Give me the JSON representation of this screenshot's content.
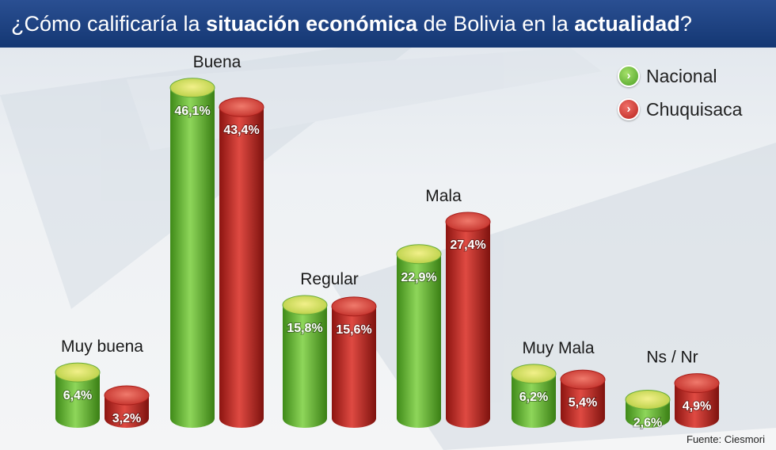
{
  "title": {
    "part1": "¿Cómo calificaría la ",
    "bold1": "situación económica",
    "part2": " de Bolivia en la ",
    "bold2": "actualidad",
    "part3": "?"
  },
  "colors": {
    "nacional": "#5cb82e",
    "chuquisaca": "#c42a26",
    "title_bg": "#1b3f7f"
  },
  "source": "Fuente: Ciesmori",
  "chart_data": {
    "type": "bar",
    "title": "¿Cómo calificaría la situación económica de Bolivia en la actualidad?",
    "categories": [
      "Muy buena",
      "Buena",
      "Regular",
      "Mala",
      "Muy Mala",
      "Ns / Nr"
    ],
    "series": [
      {
        "name": "Nacional",
        "values": [
          6.4,
          46.1,
          15.8,
          22.9,
          6.2,
          2.6
        ],
        "labels": [
          "6,4%",
          "46,1%",
          "15,8%",
          "22,9%",
          "6,2%",
          "2,6%"
        ]
      },
      {
        "name": "Chuquisaca",
        "values": [
          3.2,
          43.4,
          15.6,
          27.4,
          5.4,
          4.9
        ],
        "labels": [
          "3,2%",
          "43,4%",
          "15,6%",
          "27,4%",
          "5,4%",
          "4,9%"
        ]
      }
    ],
    "legend": "top-right",
    "grid": false
  }
}
